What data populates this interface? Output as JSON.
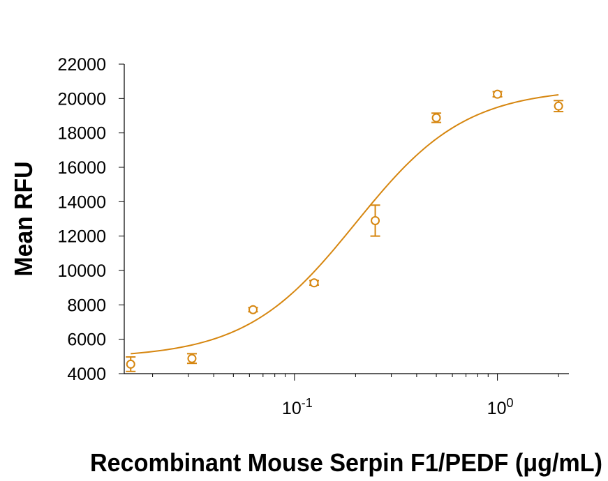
{
  "chart_data": {
    "type": "scatter",
    "title": "",
    "xlabel": "Recombinant Mouse Serpin F1/PEDF (μg/mL)",
    "ylabel": "Mean RFU",
    "x_scale": "log",
    "xlim": [
      0.0145,
      2.25
    ],
    "ylim": [
      4000,
      22000
    ],
    "y_ticks": [
      4000,
      6000,
      8000,
      10000,
      12000,
      14000,
      16000,
      18000,
      20000,
      22000
    ],
    "x_tick_labels": [
      {
        "value": 0.1,
        "base": "10",
        "exp": "-1"
      },
      {
        "value": 1,
        "base": "10",
        "exp": "0"
      }
    ],
    "grid": false,
    "legend": "none",
    "color": "#D6860F",
    "series": [
      {
        "x": [
          0.0156,
          0.03125,
          0.0625,
          0.125,
          0.25,
          0.5,
          1.0,
          2.0
        ],
        "y": [
          4550,
          4880,
          7720,
          9280,
          12900,
          18880,
          20250,
          19560
        ],
        "error": [
          420,
          280,
          120,
          130,
          900,
          270,
          150,
          320
        ],
        "fit_curve": {
          "bottom": 4900,
          "top": 20600,
          "ec50": 0.2,
          "hill": 1.6
        }
      }
    ]
  }
}
